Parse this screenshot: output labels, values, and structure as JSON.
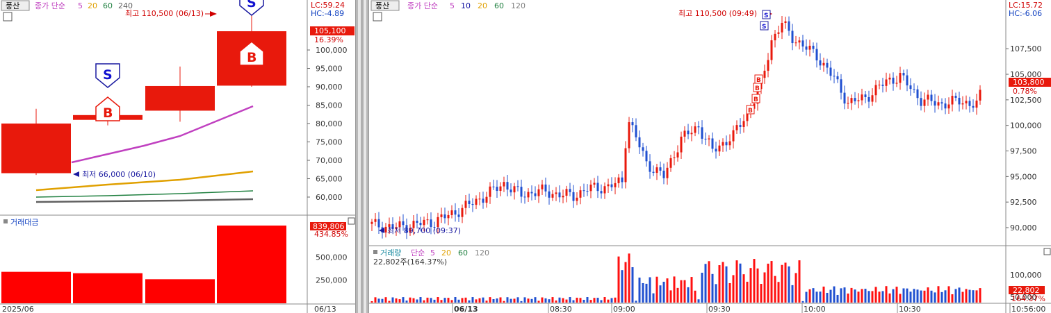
{
  "left_chart": {
    "tab_label": "풍산",
    "indicator_label": "종가 단순",
    "ma_periods": [
      "5",
      "20",
      "60",
      "240"
    ],
    "ma_colors": [
      "#c040c0",
      "#e0a000",
      "#208040",
      "#606060"
    ],
    "lc_label": "LC:59.24",
    "hc_label": "HC:-4.89",
    "high_annotation": "최고 110,500 (06/13)",
    "low_annotation": "최저 66,000 (06/10)",
    "price_tag": "105,100",
    "change_tag": "16.39%",
    "y_ticks": [
      "100,000",
      "95,000",
      "90,000",
      "85,000",
      "80,000",
      "75,000",
      "70,000",
      "65,000",
      "60,000"
    ],
    "candles": [
      {
        "open": 80000,
        "close": 66500,
        "high": 84000,
        "low": 66000
      },
      {
        "open": 81000,
        "close": 82300,
        "high": 83500,
        "low": 79500
      },
      {
        "open": 83500,
        "close": 90200,
        "high": 95500,
        "low": 80500
      },
      {
        "open": 90300,
        "close": 105100,
        "high": 110500,
        "low": 90000
      }
    ],
    "sell_marker": "S",
    "buy_marker": "B",
    "volume_label": "거래대금",
    "volume_tag": "839,806",
    "volume_change_tag": "434.85%",
    "volume_ticks": [
      "500,000",
      "250,000"
    ],
    "volume_values": [
      340000,
      325000,
      260000,
      839806
    ],
    "x_labels": [
      "2025/06",
      "06/13"
    ]
  },
  "right_chart": {
    "tab_label": "풍산",
    "indicator_label": "종가 단순",
    "ma_periods": [
      "5",
      "10",
      "20",
      "60",
      "120"
    ],
    "ma_colors": [
      "#c040c0",
      "#1010a0",
      "#e0a000",
      "#208040",
      "#808080"
    ],
    "lc_label": "LC:15.72",
    "hc_label": "HC:-6.06",
    "high_annotation": "최고 110,500 (09:49)",
    "low_annotation": "최저 89,700 (09:37)",
    "price_tag": "103,800",
    "change_tag": "0.78%",
    "y_ticks": [
      "107,500",
      "105,000",
      "102,500",
      "100,000",
      "97,500",
      "95,000",
      "92,500",
      "90,000"
    ],
    "volume_title": "거래량",
    "volume_indicator": "단순",
    "volume_ma_periods": [
      "5",
      "20",
      "60",
      "120"
    ],
    "volume_value_label": "22,802주(164.37%)",
    "volume_tag": "22,802",
    "volume_change_tag": "164.37%",
    "volume_ticks": [
      "100,000",
      "50,000"
    ],
    "x_labels": [
      "06/13",
      "08:30",
      "09:00",
      "09:30",
      "10:00",
      "10:30",
      "10:56:00"
    ],
    "sell_marker": "S",
    "buy_marker": "B"
  },
  "colors": {
    "up": "#e8190c",
    "down": "#1f4fd0",
    "tag_bg": "#e8190c"
  }
}
